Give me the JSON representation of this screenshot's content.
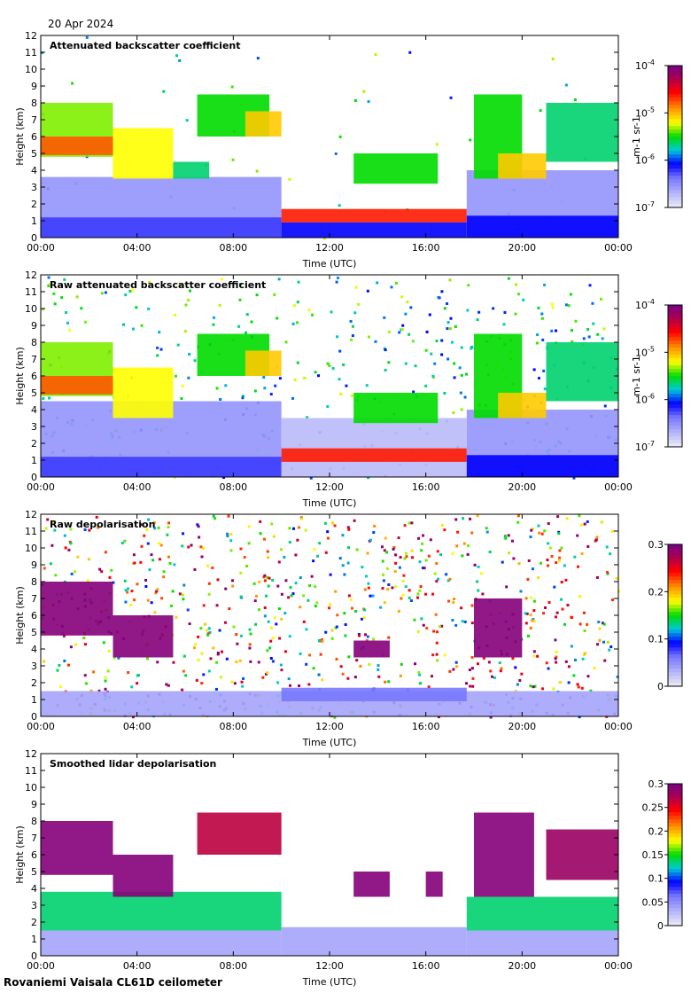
{
  "date": "20 Apr 2024",
  "footer": "Rovaniemi Vaisala CL61D ceilometer",
  "chart_data": [
    {
      "type": "heatmap",
      "title": "Attenuated backscatter coefficient",
      "xlabel": "Time (UTC)",
      "ylabel": "Height (km)",
      "xticks": [
        "00:00",
        "04:00",
        "08:00",
        "12:00",
        "16:00",
        "20:00",
        "00:00"
      ],
      "yticks": [
        "0",
        "1",
        "2",
        "3",
        "4",
        "5",
        "6",
        "7",
        "8",
        "9",
        "10",
        "11",
        "12"
      ],
      "xlim": [
        0,
        24
      ],
      "ylim": [
        0,
        12
      ],
      "colorbar": {
        "label": "m-1 sr-1",
        "scale": "log",
        "ticks": [
          {
            "base": "10",
            "exp": "-7"
          },
          {
            "base": "10",
            "exp": "-6"
          },
          {
            "base": "10",
            "exp": "-5"
          },
          {
            "base": "10",
            "exp": "-4"
          }
        ]
      },
      "noise": 0.05,
      "features": [
        {
          "t0": 0,
          "t1": 10,
          "h0": 0,
          "h1": 3.6,
          "v": 0.15
        },
        {
          "t0": 0,
          "t1": 10,
          "h0": 0,
          "h1": 1.2,
          "v": 0.25
        },
        {
          "t0": 0,
          "t1": 3,
          "h0": 4.8,
          "h1": 8,
          "v": 0.55
        },
        {
          "t0": 0,
          "t1": 3,
          "h0": 4.9,
          "h1": 6,
          "v": 0.75
        },
        {
          "t0": 3,
          "t1": 5.5,
          "h0": 3.5,
          "h1": 6.5,
          "v": 0.6
        },
        {
          "t0": 5.5,
          "t1": 7,
          "h0": 3.5,
          "h1": 4.5,
          "v": 0.45
        },
        {
          "t0": 6.5,
          "t1": 9.5,
          "h0": 6,
          "h1": 8.5,
          "v": 0.5
        },
        {
          "t0": 8.5,
          "t1": 10,
          "h0": 6,
          "h1": 7.5,
          "v": 0.65
        },
        {
          "t0": 10,
          "t1": 17.7,
          "h0": 0.9,
          "h1": 1.7,
          "v": 0.8
        },
        {
          "t0": 10,
          "t1": 17.7,
          "h0": 0,
          "h1": 0.9,
          "v": 0.3
        },
        {
          "t0": 13,
          "t1": 16.5,
          "h0": 3.2,
          "h1": 5,
          "v": 0.5
        },
        {
          "t0": 17.7,
          "t1": 24,
          "h0": 0,
          "h1": 4,
          "v": 0.15
        },
        {
          "t0": 17.7,
          "t1": 24,
          "h0": 0,
          "h1": 1.3,
          "v": 0.3
        },
        {
          "t0": 18,
          "t1": 20,
          "h0": 3.5,
          "h1": 8.5,
          "v": 0.5
        },
        {
          "t0": 19,
          "t1": 21,
          "h0": 3.5,
          "h1": 5,
          "v": 0.65
        },
        {
          "t0": 21,
          "t1": 24,
          "h0": 4.5,
          "h1": 8,
          "v": 0.45
        }
      ]
    },
    {
      "type": "heatmap",
      "title": "Raw attenuated backscatter coefficient",
      "xlabel": "Time (UTC)",
      "ylabel": "Height (km)",
      "xticks": [
        "00:00",
        "04:00",
        "08:00",
        "12:00",
        "16:00",
        "20:00",
        "00:00"
      ],
      "yticks": [
        "0",
        "1",
        "2",
        "3",
        "4",
        "5",
        "6",
        "7",
        "8",
        "9",
        "10",
        "11",
        "12"
      ],
      "xlim": [
        0,
        24
      ],
      "ylim": [
        0,
        12
      ],
      "colorbar": {
        "label": "m-1 sr-1",
        "scale": "log",
        "ticks": [
          {
            "base": "10",
            "exp": "-7"
          },
          {
            "base": "10",
            "exp": "-6"
          },
          {
            "base": "10",
            "exp": "-5"
          },
          {
            "base": "10",
            "exp": "-4"
          }
        ]
      },
      "noise": 0.45,
      "features": [
        {
          "t0": 0,
          "t1": 10,
          "h0": 0,
          "h1": 4.5,
          "v": 0.15
        },
        {
          "t0": 0,
          "t1": 10,
          "h0": 0,
          "h1": 1.2,
          "v": 0.25
        },
        {
          "t0": 0,
          "t1": 3,
          "h0": 4.8,
          "h1": 8,
          "v": 0.55
        },
        {
          "t0": 0,
          "t1": 3,
          "h0": 4.9,
          "h1": 6,
          "v": 0.75
        },
        {
          "t0": 3,
          "t1": 5.5,
          "h0": 3.5,
          "h1": 6.5,
          "v": 0.6
        },
        {
          "t0": 6.5,
          "t1": 9.5,
          "h0": 6,
          "h1": 8.5,
          "v": 0.5
        },
        {
          "t0": 8.5,
          "t1": 10,
          "h0": 6,
          "h1": 7.5,
          "v": 0.65
        },
        {
          "t0": 10,
          "t1": 17.7,
          "h0": 0,
          "h1": 3.5,
          "v": 0.08
        },
        {
          "t0": 10,
          "t1": 17.7,
          "h0": 0.9,
          "h1": 1.7,
          "v": 0.8
        },
        {
          "t0": 13,
          "t1": 16.5,
          "h0": 3.2,
          "h1": 5,
          "v": 0.5
        },
        {
          "t0": 17.7,
          "t1": 24,
          "h0": 0,
          "h1": 4,
          "v": 0.15
        },
        {
          "t0": 17.7,
          "t1": 24,
          "h0": 0,
          "h1": 1.3,
          "v": 0.3
        },
        {
          "t0": 18,
          "t1": 20,
          "h0": 3.5,
          "h1": 8.5,
          "v": 0.5
        },
        {
          "t0": 19,
          "t1": 21,
          "h0": 3.5,
          "h1": 5,
          "v": 0.65
        },
        {
          "t0": 21,
          "t1": 24,
          "h0": 4.5,
          "h1": 8,
          "v": 0.45
        }
      ]
    },
    {
      "type": "heatmap",
      "title": "Raw depolarisation",
      "xlabel": "Time (UTC)",
      "ylabel": "Height (km)",
      "xticks": [
        "00:00",
        "04:00",
        "08:00",
        "12:00",
        "16:00",
        "20:00",
        "00:00"
      ],
      "yticks": [
        "0",
        "1",
        "2",
        "3",
        "4",
        "5",
        "6",
        "7",
        "8",
        "9",
        "10",
        "11",
        "12"
      ],
      "xlim": [
        0,
        24
      ],
      "ylim": [
        0,
        12
      ],
      "colorbar": {
        "label": "",
        "scale": "linear",
        "ticks": [
          {
            "base": "0"
          },
          {
            "base": "0.1"
          },
          {
            "base": "0.2"
          },
          {
            "base": "0.3"
          }
        ]
      },
      "noise": 0.95,
      "features": [
        {
          "t0": 0,
          "t1": 24,
          "h0": 0,
          "h1": 1.5,
          "v": 0.12
        },
        {
          "t0": 0,
          "t1": 3,
          "h0": 4.8,
          "h1": 8,
          "v": 0.99
        },
        {
          "t0": 3,
          "t1": 5.5,
          "h0": 3.5,
          "h1": 6,
          "v": 0.99
        },
        {
          "t0": 10,
          "t1": 17.7,
          "h0": 0.9,
          "h1": 1.7,
          "v": 0.2
        },
        {
          "t0": 13,
          "t1": 14.5,
          "h0": 3.5,
          "h1": 4.5,
          "v": 0.99
        },
        {
          "t0": 18,
          "t1": 20,
          "h0": 3.5,
          "h1": 7,
          "v": 0.99
        }
      ]
    },
    {
      "type": "heatmap",
      "title": "Smoothed lidar depolarisation",
      "xlabel": "Time (UTC)",
      "ylabel": "Height (km)",
      "xticks": [
        "00:00",
        "04:00",
        "08:00",
        "12:00",
        "16:00",
        "20:00",
        "00:00"
      ],
      "yticks": [
        "0",
        "1",
        "2",
        "3",
        "4",
        "5",
        "6",
        "7",
        "8",
        "9",
        "10",
        "11",
        "12"
      ],
      "xlim": [
        0,
        24
      ],
      "ylim": [
        0,
        12
      ],
      "colorbar": {
        "label": "",
        "scale": "linear",
        "ticks": [
          {
            "base": "0"
          },
          {
            "base": "0.05"
          },
          {
            "base": "0.1"
          },
          {
            "base": "0.15"
          },
          {
            "base": "0.2"
          },
          {
            "base": "0.25"
          },
          {
            "base": "0.3"
          }
        ]
      },
      "noise": 0.0,
      "features": [
        {
          "t0": 0,
          "t1": 10,
          "h0": 0,
          "h1": 1.5,
          "v": 0.12
        },
        {
          "t0": 0,
          "t1": 10,
          "h0": 1.5,
          "h1": 3.8,
          "v": 0.45
        },
        {
          "t0": 0,
          "t1": 3,
          "h0": 4.8,
          "h1": 8,
          "v": 0.99
        },
        {
          "t0": 3,
          "t1": 5.5,
          "h0": 3.5,
          "h1": 6,
          "v": 0.99
        },
        {
          "t0": 6.5,
          "t1": 10,
          "h0": 6,
          "h1": 8.5,
          "v": 0.9
        },
        {
          "t0": 10,
          "t1": 17.7,
          "h0": 0,
          "h1": 1.7,
          "v": 0.12
        },
        {
          "t0": 13,
          "t1": 14.5,
          "h0": 3.5,
          "h1": 5,
          "v": 0.99
        },
        {
          "t0": 16,
          "t1": 16.7,
          "h0": 3.5,
          "h1": 5,
          "v": 0.99
        },
        {
          "t0": 17.7,
          "t1": 24,
          "h0": 0,
          "h1": 1.5,
          "v": 0.12
        },
        {
          "t0": 17.7,
          "t1": 24,
          "h0": 1.5,
          "h1": 3.5,
          "v": 0.45
        },
        {
          "t0": 18,
          "t1": 20.5,
          "h0": 3.5,
          "h1": 8.5,
          "v": 0.99
        },
        {
          "t0": 21,
          "t1": 24,
          "h0": 4.5,
          "h1": 7.5,
          "v": 0.95
        }
      ]
    }
  ]
}
